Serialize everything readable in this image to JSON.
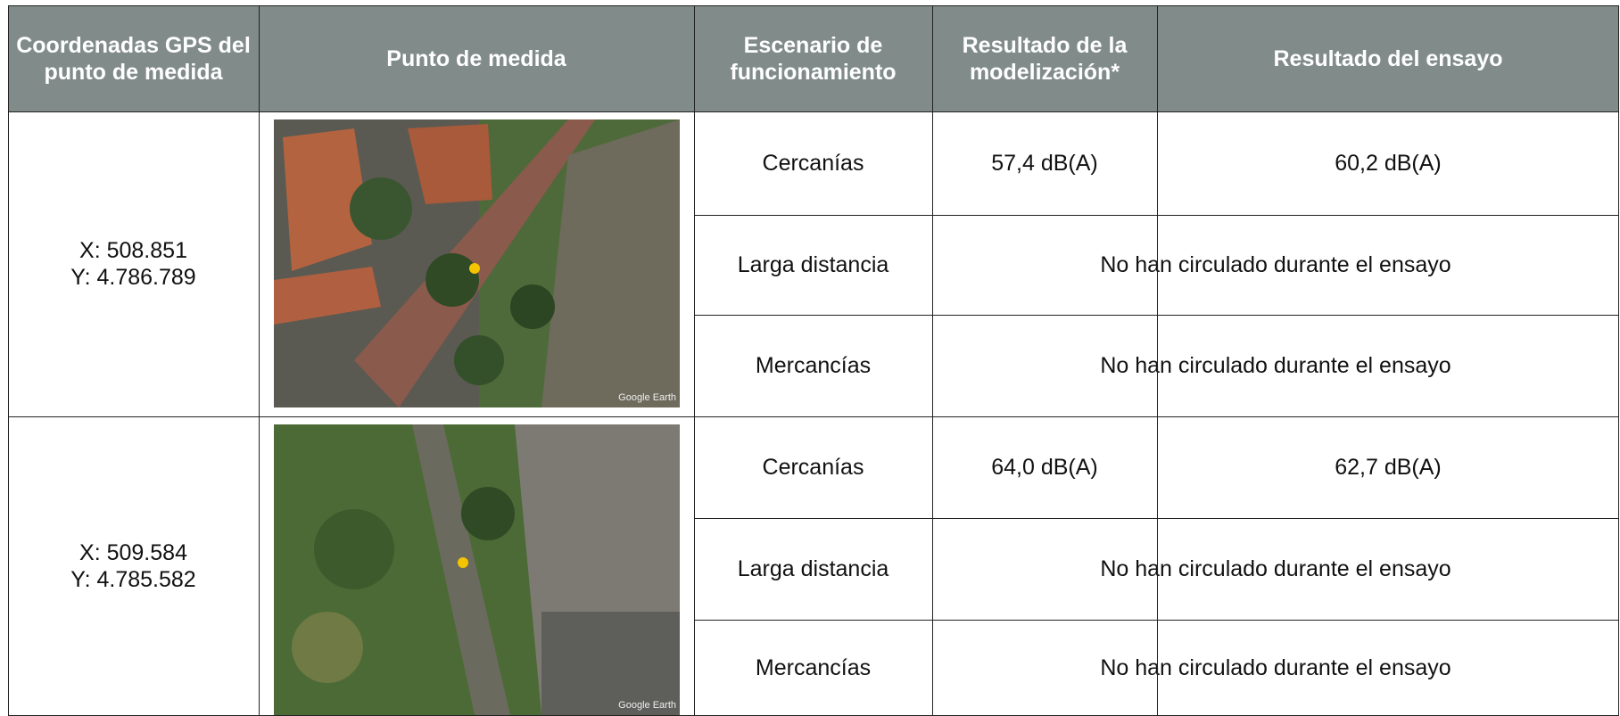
{
  "table": {
    "header": [
      "Coordenadas GPS del punto de medida",
      "Punto de medida",
      "Escenario de funcionamiento",
      "Resultado de la modelización*",
      "Resultado del ensayo"
    ],
    "rows": [
      {
        "coordinates": [
          "X: 508.851",
          "Y: 4.786.789"
        ],
        "image_credit": "Google Earth",
        "scenarios": [
          {
            "name": "Cercanías",
            "model": "57,4 dB(A)",
            "test": "60,2 dB(A)"
          },
          {
            "name": "Larga distancia",
            "merged": "No han circulado durante el ensayo"
          },
          {
            "name": "Mercancías",
            "merged": "No han circulado durante el ensayo"
          }
        ]
      },
      {
        "coordinates": [
          "X: 509.584",
          "Y: 4.785.582"
        ],
        "image_credit": "Google Earth",
        "scenarios": [
          {
            "name": "Cercanías",
            "model": "64,0 dB(A)",
            "test": "62,7 dB(A)"
          },
          {
            "name": "Larga distancia",
            "merged": "No han circulado durante el ensayo"
          },
          {
            "name": "Mercancías",
            "merged": "No han circulado durante el ensayo"
          }
        ]
      }
    ]
  }
}
